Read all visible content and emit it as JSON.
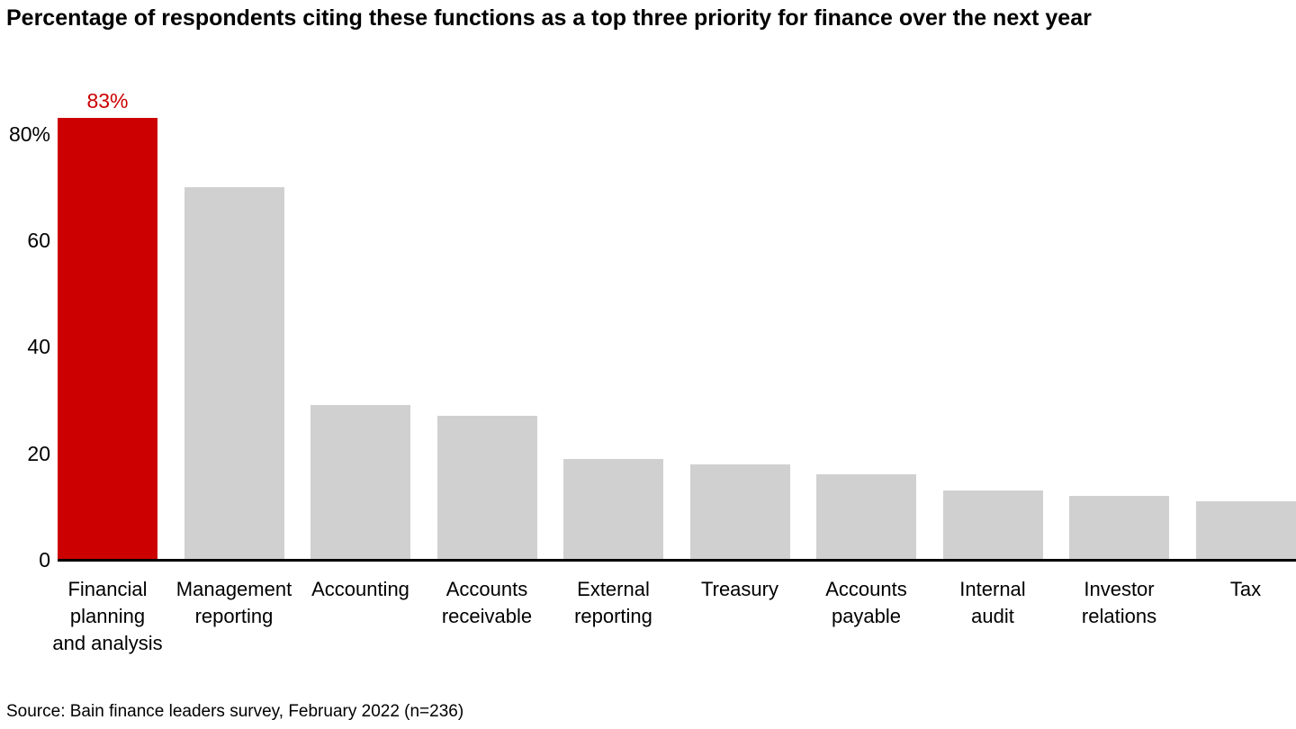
{
  "title": "Percentage of respondents citing these functions as a top three priority for finance over the next year",
  "source": "Source: Bain finance leaders survey, February 2022 (n=236)",
  "colors": {
    "highlight": "#CC0000",
    "bar": "#D0D0D0",
    "axis": "#000000",
    "text": "#000000"
  },
  "chart_data": {
    "type": "bar",
    "title": "Percentage of respondents citing these functions as a top three priority for finance over the next year",
    "categories": [
      "Financial planning and analysis",
      "Management reporting",
      "Accounting",
      "Accounts receivable",
      "External reporting",
      "Treasury",
      "Accounts payable",
      "Internal audit",
      "Investor relations",
      "Tax"
    ],
    "category_label_lines": [
      [
        "Financial",
        "planning",
        "and analysis"
      ],
      [
        "Management",
        "reporting"
      ],
      [
        "Accounting"
      ],
      [
        "Accounts",
        "receivable"
      ],
      [
        "External",
        "reporting"
      ],
      [
        "Treasury"
      ],
      [
        "Accounts",
        "payable"
      ],
      [
        "Internal",
        "audit"
      ],
      [
        "Investor",
        "relations"
      ],
      [
        "Tax"
      ]
    ],
    "values": [
      83,
      70,
      29,
      27,
      19,
      18,
      16,
      13,
      12,
      11
    ],
    "unit": "%",
    "data_labels": [
      "83%",
      null,
      null,
      null,
      null,
      null,
      null,
      null,
      null,
      null
    ],
    "highlight_index": 0,
    "ylim": [
      0,
      85
    ],
    "yticks": [
      {
        "value": 80,
        "label": "80%"
      },
      {
        "value": 60,
        "label": "60"
      },
      {
        "value": 40,
        "label": "40"
      },
      {
        "value": 20,
        "label": "20"
      },
      {
        "value": 0,
        "label": "0"
      }
    ],
    "grid": false,
    "legend": null,
    "xlabel": "",
    "ylabel": ""
  }
}
